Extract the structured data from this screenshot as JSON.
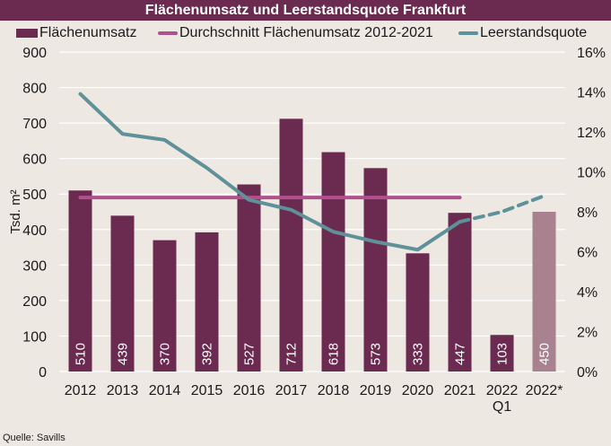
{
  "chart_data": {
    "type": "bar",
    "title": "Flächenumsatz und Leerstandsquote Frankfurt",
    "xlabel": "",
    "ylabel": "Tsd. m²",
    "y2label": "",
    "ylim": [
      0,
      900
    ],
    "y2lim": [
      0,
      16
    ],
    "yticks": [
      "0",
      "100",
      "200",
      "300",
      "400",
      "500",
      "600",
      "700",
      "800",
      "900"
    ],
    "y2ticks": [
      "0%",
      "2%",
      "4%",
      "6%",
      "8%",
      "10%",
      "12%",
      "14%",
      "16%"
    ],
    "grid": true,
    "legend_position": "top",
    "categories": [
      "2012",
      "2013",
      "2014",
      "2015",
      "2016",
      "2017",
      "2018",
      "2019",
      "2020",
      "2021",
      "2022 Q1",
      "2022*"
    ],
    "category_lines": [
      [
        "2012"
      ],
      [
        "2013"
      ],
      [
        "2014"
      ],
      [
        "2015"
      ],
      [
        "2016"
      ],
      [
        "2017"
      ],
      [
        "2018"
      ],
      [
        "2019"
      ],
      [
        "2020"
      ],
      [
        "2021"
      ],
      [
        "2022",
        "Q1"
      ],
      [
        "2022*"
      ]
    ],
    "series": [
      {
        "name": "Flächenumsatz",
        "type": "bar",
        "axis": "left",
        "values": [
          510,
          439,
          370,
          392,
          527,
          712,
          618,
          573,
          333,
          447,
          103,
          450
        ],
        "labels": [
          "510",
          "439",
          "370",
          "392",
          "527",
          "712",
          "618",
          "573",
          "333",
          "447",
          "103",
          "450"
        ],
        "forecast_index": [
          11
        ],
        "color": "#6b2a4f",
        "forecast_color": "#a8838f"
      },
      {
        "name": "Durchschnitt Flächenumsatz 2012-2021",
        "type": "line",
        "axis": "left",
        "value": 490,
        "range": [
          "2012",
          "2021"
        ],
        "color": "#b0518e"
      },
      {
        "name": "Leerstandsquote",
        "type": "line",
        "axis": "right",
        "values": [
          13.9,
          11.9,
          11.6,
          10.2,
          8.6,
          8.1,
          7.0,
          6.5,
          6.1,
          7.5,
          8.0,
          8.8
        ],
        "dashed_from_index": 10,
        "color": "#5f9198"
      }
    ],
    "source": "Quelle: Savills"
  },
  "legend": [
    {
      "label": "Flächenumsatz",
      "kind": "bar",
      "color": "#6b2a4f"
    },
    {
      "label": "Durchschnitt Flächenumsatz 2012-2021",
      "kind": "line",
      "color": "#b0518e"
    },
    {
      "label": "Leerstandsquote",
      "kind": "line",
      "color": "#5f9198"
    }
  ]
}
